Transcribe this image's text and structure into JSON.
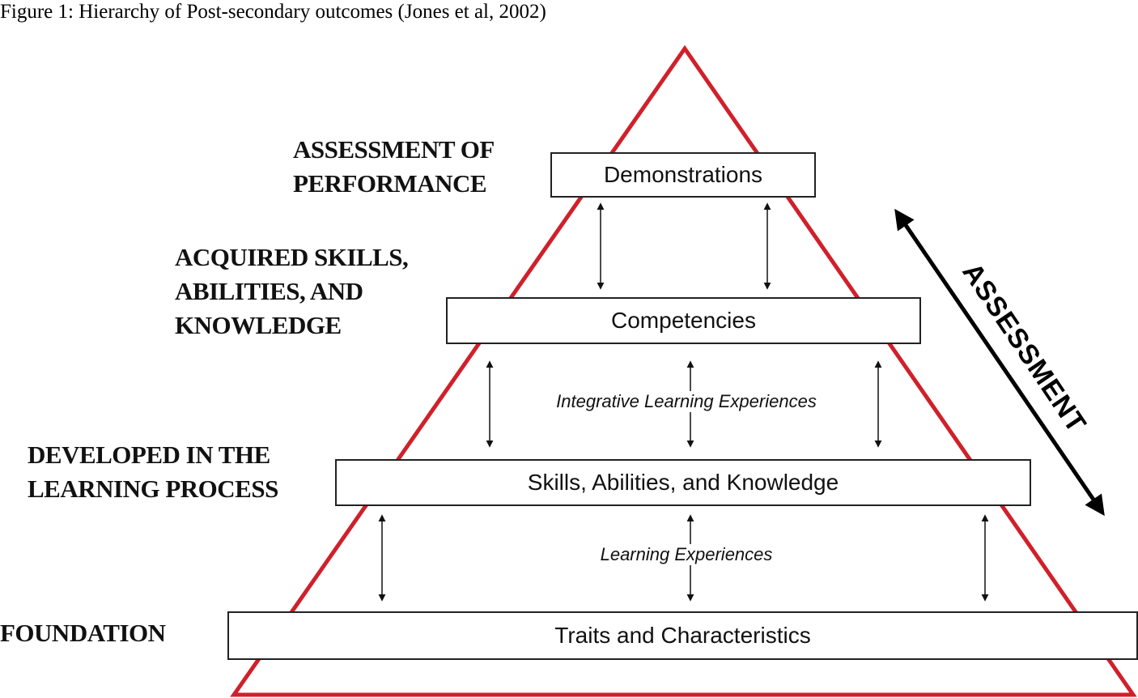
{
  "caption": "Figure 1: Hierarchy of Post-secondary outcomes (Jones et al, 2002)",
  "levels": [
    {
      "side_label": "ASSESSMENT OF\nPERFORMANCE",
      "box_label": "Demonstrations"
    },
    {
      "side_label": "ACQUIRED SKILLS,\nABILITIES, AND\nKNOWLEDGE",
      "box_label": "Competencies"
    },
    {
      "side_label": "DEVELOPED IN THE\nLEARNING PROCESS",
      "box_label": "Skills, Abilities, and Knowledge"
    },
    {
      "side_label": "FOUNDATION",
      "box_label": "Traits and Characteristics"
    }
  ],
  "connectors": [
    {
      "label": ""
    },
    {
      "label": "Integrative Learning Experiences"
    },
    {
      "label": "Learning Experiences"
    }
  ],
  "assessment_label": "ASSESSMENT",
  "colors": {
    "triangle": "#d0202a",
    "box_border": "#222222",
    "arrow": "#111111"
  }
}
